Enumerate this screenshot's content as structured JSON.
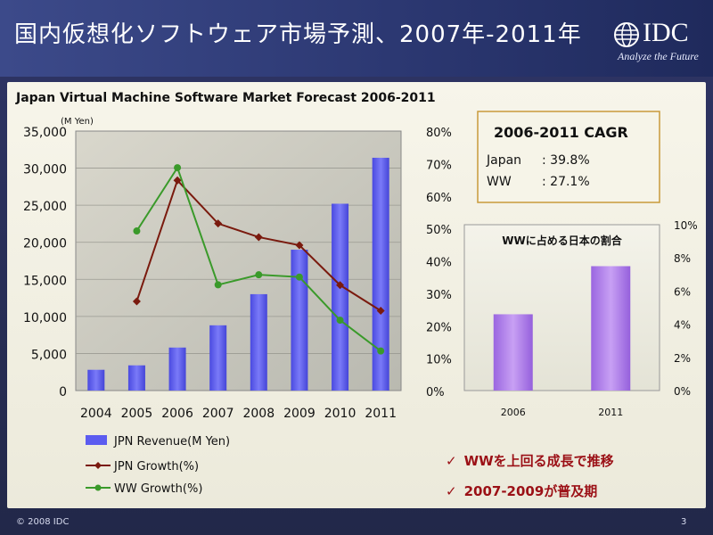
{
  "slide": {
    "title": "国内仮想化ソフトウェア市場予測、2007年-2011年",
    "logo_text": "IDC",
    "logo_tagline": "Analyze the Future",
    "footer_copyright": "© 2008 IDC",
    "page_number": "3",
    "bullets": [
      {
        "icon": "check-icon",
        "text": "WWを上回る成長で推移"
      },
      {
        "icon": "check-icon",
        "text": "2007-2009が普及期"
      }
    ],
    "cagr_box": {
      "title": "2006-2011 CAGR",
      "rows": [
        {
          "label": "Japan",
          "value": ": 39.8%"
        },
        {
          "label": "WW",
          "value": ": 27.1%"
        }
      ]
    },
    "colors": {
      "revenue_bar": "#5c5cf0",
      "jpn_growth": "#7a1a0e",
      "ww_growth": "#3a9a2a",
      "share_bar": "#b07ee8",
      "cagr_border": "#c89a3a"
    }
  },
  "chart_data": [
    {
      "type": "bar",
      "title": "Japan Virtual Machine Software Market Forecast 2006-2011",
      "categories": [
        "2004",
        "2005",
        "2006",
        "2007",
        "2008",
        "2009",
        "2010",
        "2011"
      ],
      "y_unit_label": "(M Yen)",
      "ylim": [
        0,
        35000
      ],
      "y_ticks": [
        {
          "value": 0,
          "label": "0"
        },
        {
          "value": 5000,
          "label": "5,000"
        },
        {
          "value": 10000,
          "label": "10,000"
        },
        {
          "value": 15000,
          "label": "15,000"
        },
        {
          "value": 20000,
          "label": "20,000"
        },
        {
          "value": 25000,
          "label": "25,000"
        },
        {
          "value": 30000,
          "label": "30,000"
        },
        {
          "value": 35000,
          "label": "35,000"
        }
      ],
      "y2lim": [
        0,
        80
      ],
      "y2_ticks": [
        {
          "value": 0,
          "label": "0%"
        },
        {
          "value": 10,
          "label": "10%"
        },
        {
          "value": 20,
          "label": "20%"
        },
        {
          "value": 30,
          "label": "30%"
        },
        {
          "value": 40,
          "label": "40%"
        },
        {
          "value": 50,
          "label": "50%"
        },
        {
          "value": 60,
          "label": "60%"
        },
        {
          "value": 70,
          "label": "70%"
        },
        {
          "value": 80,
          "label": "80%"
        }
      ],
      "series": [
        {
          "name": "JPN Revenue(M Yen)",
          "kind": "bar",
          "axis": "left",
          "values": [
            2800,
            3400,
            5800,
            8800,
            13000,
            19000,
            25200,
            31400
          ]
        },
        {
          "name": "JPN Growth(%)",
          "kind": "line",
          "axis": "right",
          "marker": "diamond",
          "values": [
            null,
            27.5,
            64.8,
            51.5,
            47.3,
            44.8,
            32.5,
            24.6
          ]
        },
        {
          "name": "WW Growth(%)",
          "kind": "line",
          "axis": "right",
          "marker": "circle",
          "values": [
            null,
            49.2,
            68.7,
            32.6,
            35.7,
            35.0,
            21.7,
            12.2
          ]
        }
      ],
      "grid": true,
      "legend_position": "bottom-left"
    },
    {
      "type": "bar",
      "title": "WWに占める日本の割合",
      "categories": [
        "2006",
        "2011"
      ],
      "values": [
        4.6,
        7.5
      ],
      "ylim": [
        0,
        10
      ],
      "y_ticks": [
        {
          "value": 0,
          "label": "0%"
        },
        {
          "value": 2,
          "label": "2%"
        },
        {
          "value": 4,
          "label": "4%"
        },
        {
          "value": 6,
          "label": "6%"
        },
        {
          "value": 8,
          "label": "8%"
        },
        {
          "value": 10,
          "label": "10%"
        }
      ],
      "axis_side": "right"
    }
  ]
}
